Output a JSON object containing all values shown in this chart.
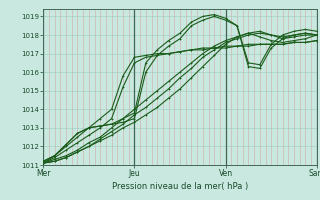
{
  "bg_color": "#c8e8e0",
  "plot_bg": "#c8e8e0",
  "grid_color_h": "#99ccbb",
  "grid_color_v": "#d4a8a8",
  "line_color": "#1a5c1a",
  "ylim": [
    1011.0,
    1019.4
  ],
  "yticks": [
    1011,
    1012,
    1013,
    1014,
    1015,
    1016,
    1017,
    1018,
    1019
  ],
  "xtick_labels": [
    "Mer",
    "Jeu",
    "Ven",
    "Sam"
  ],
  "xlabel": "Pression niveau de la mer( hPa )",
  "lines": [
    [
      0,
      1011.1,
      6,
      1011.2,
      12,
      1011.4,
      18,
      1011.7,
      24,
      1012.0,
      30,
      1012.3,
      36,
      1012.6,
      42,
      1013.0,
      48,
      1013.3,
      54,
      1013.7,
      60,
      1014.1,
      66,
      1014.6,
      72,
      1015.1,
      78,
      1015.7,
      84,
      1016.3,
      90,
      1016.9,
      96,
      1017.5,
      102,
      1017.9,
      108,
      1018.1,
      114,
      1017.9,
      120,
      1017.7,
      126,
      1017.6,
      132,
      1017.7,
      138,
      1017.8,
      144,
      1018.0
    ],
    [
      0,
      1011.1,
      6,
      1011.2,
      12,
      1011.4,
      18,
      1011.7,
      24,
      1012.0,
      30,
      1012.4,
      36,
      1012.8,
      42,
      1013.2,
      48,
      1013.7,
      54,
      1014.1,
      60,
      1014.6,
      66,
      1015.1,
      72,
      1015.7,
      78,
      1016.2,
      84,
      1016.8,
      90,
      1017.2,
      96,
      1017.6,
      102,
      1017.8,
      108,
      1018.0,
      114,
      1018.1,
      120,
      1018.0,
      126,
      1017.9,
      132,
      1018.0,
      138,
      1018.1,
      144,
      1018.0
    ],
    [
      0,
      1011.1,
      6,
      1011.3,
      12,
      1011.5,
      18,
      1011.8,
      24,
      1012.2,
      30,
      1012.5,
      36,
      1013.0,
      42,
      1013.5,
      48,
      1014.0,
      54,
      1014.5,
      60,
      1015.0,
      66,
      1015.5,
      72,
      1016.0,
      78,
      1016.5,
      84,
      1017.0,
      90,
      1017.4,
      96,
      1017.7,
      102,
      1017.9,
      108,
      1018.1,
      114,
      1018.2,
      120,
      1018.0,
      126,
      1017.8,
      132,
      1017.9,
      138,
      1018.0,
      144,
      1018.0
    ],
    [
      0,
      1011.1,
      6,
      1011.4,
      12,
      1011.8,
      18,
      1012.2,
      24,
      1012.6,
      30,
      1013.0,
      36,
      1013.5,
      42,
      1015.2,
      48,
      1016.5,
      54,
      1016.8,
      60,
      1016.9,
      66,
      1017.0,
      72,
      1017.1,
      78,
      1017.2,
      84,
      1017.3,
      90,
      1017.3,
      96,
      1017.4,
      102,
      1017.4,
      108,
      1017.4,
      114,
      1017.5,
      120,
      1017.5,
      126,
      1017.5,
      132,
      1017.6,
      138,
      1017.6,
      144,
      1017.7
    ],
    [
      0,
      1011.1,
      6,
      1011.5,
      12,
      1012.0,
      18,
      1012.5,
      24,
      1013.0,
      30,
      1013.5,
      36,
      1014.0,
      42,
      1015.8,
      48,
      1016.8,
      54,
      1016.9,
      60,
      1017.0,
      66,
      1017.0,
      72,
      1017.1,
      78,
      1017.2,
      84,
      1017.2,
      90,
      1017.3,
      96,
      1017.3,
      102,
      1017.4,
      108,
      1017.5,
      114,
      1017.5,
      120,
      1017.5,
      126,
      1017.5,
      132,
      1017.6,
      138,
      1017.6,
      144,
      1017.7
    ],
    [
      0,
      1011.2,
      6,
      1011.5,
      12,
      1012.1,
      18,
      1012.7,
      24,
      1013.0,
      30,
      1013.1,
      36,
      1013.2,
      42,
      1013.3,
      48,
      1013.5,
      54,
      1016.0,
      60,
      1016.9,
      66,
      1017.4,
      72,
      1017.8,
      78,
      1018.5,
      84,
      1018.8,
      90,
      1019.0,
      96,
      1018.8,
      102,
      1018.5,
      108,
      1016.5,
      114,
      1016.4,
      120,
      1017.5,
      126,
      1018.0,
      132,
      1018.2,
      138,
      1018.3,
      144,
      1018.2
    ],
    [
      0,
      1011.2,
      6,
      1011.5,
      12,
      1012.1,
      18,
      1012.7,
      24,
      1013.0,
      30,
      1013.1,
      36,
      1013.2,
      42,
      1013.5,
      48,
      1013.8,
      54,
      1016.5,
      60,
      1017.2,
      66,
      1017.7,
      72,
      1018.1,
      78,
      1018.7,
      84,
      1019.0,
      90,
      1019.1,
      96,
      1018.9,
      102,
      1018.5,
      108,
      1016.3,
      114,
      1016.2,
      120,
      1017.3,
      126,
      1017.8,
      132,
      1018.0,
      138,
      1018.1,
      144,
      1018.0
    ]
  ]
}
